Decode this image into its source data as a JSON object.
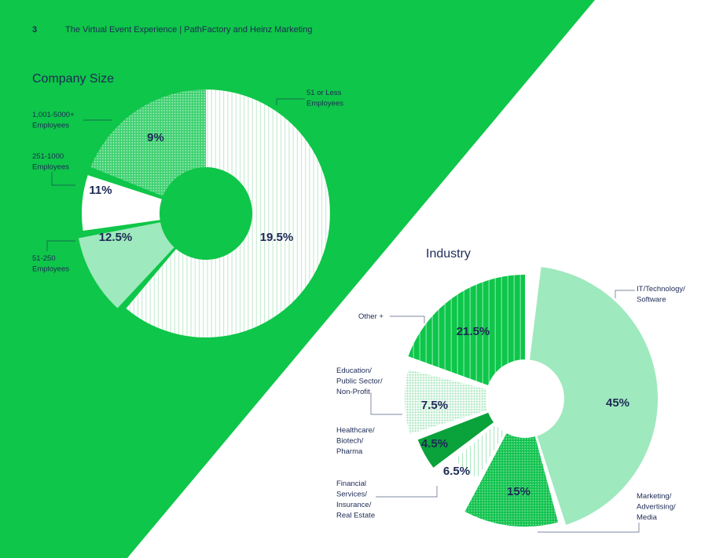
{
  "header": {
    "page_number": "3",
    "title": "The Virtual Event Experience | PathFactory and Heinz Marketing"
  },
  "colors": {
    "green": "#0ec649",
    "dark_green": "#0aa23a",
    "mint": "#9ee9bd",
    "mint_mid": "#6ddf98",
    "navy": "#1d2a55",
    "white": "#ffffff"
  },
  "chart_data": [
    {
      "type": "donut",
      "title": "Company Size",
      "slices": [
        {
          "label": [
            "51 or Less",
            "Employees"
          ],
          "value_label": "19.5%",
          "pattern": "white-vertical-lines"
        },
        {
          "label": [
            "51-250",
            "Employees"
          ],
          "value_label": "12.5%",
          "pattern": "solid-mint"
        },
        {
          "label": [
            "251-1000",
            "Employees"
          ],
          "value_label": "11%",
          "pattern": "solid-white"
        },
        {
          "label": [
            "1,001-5000+",
            "Employees"
          ],
          "value_label": "9%",
          "pattern": "mint-dots"
        }
      ]
    },
    {
      "type": "donut",
      "title": "Industry",
      "slices": [
        {
          "label": [
            "IT/Technology/",
            "Software"
          ],
          "value_label": "45%",
          "pattern": "solid-mint"
        },
        {
          "label": [
            "Marketing/",
            "Advertising/",
            "Media"
          ],
          "value_label": "15%",
          "pattern": "green-dots"
        },
        {
          "label": [
            "Financial",
            "Services/",
            "Insurance/",
            "Real Estate"
          ],
          "value_label": "6.5%",
          "pattern": "faint-vertical-lines"
        },
        {
          "label": [
            "Healthcare/",
            "Biotech/",
            "Pharma"
          ],
          "value_label": "4.5%",
          "pattern": "solid-dark-green"
        },
        {
          "label": [
            "Education/",
            "Public Sector/",
            "Non-Profit"
          ],
          "value_label": "7.5%",
          "pattern": "light-dots"
        },
        {
          "label": [
            "Other +"
          ],
          "value_label": "21.5%",
          "pattern": "green-vertical-lines"
        }
      ]
    }
  ]
}
